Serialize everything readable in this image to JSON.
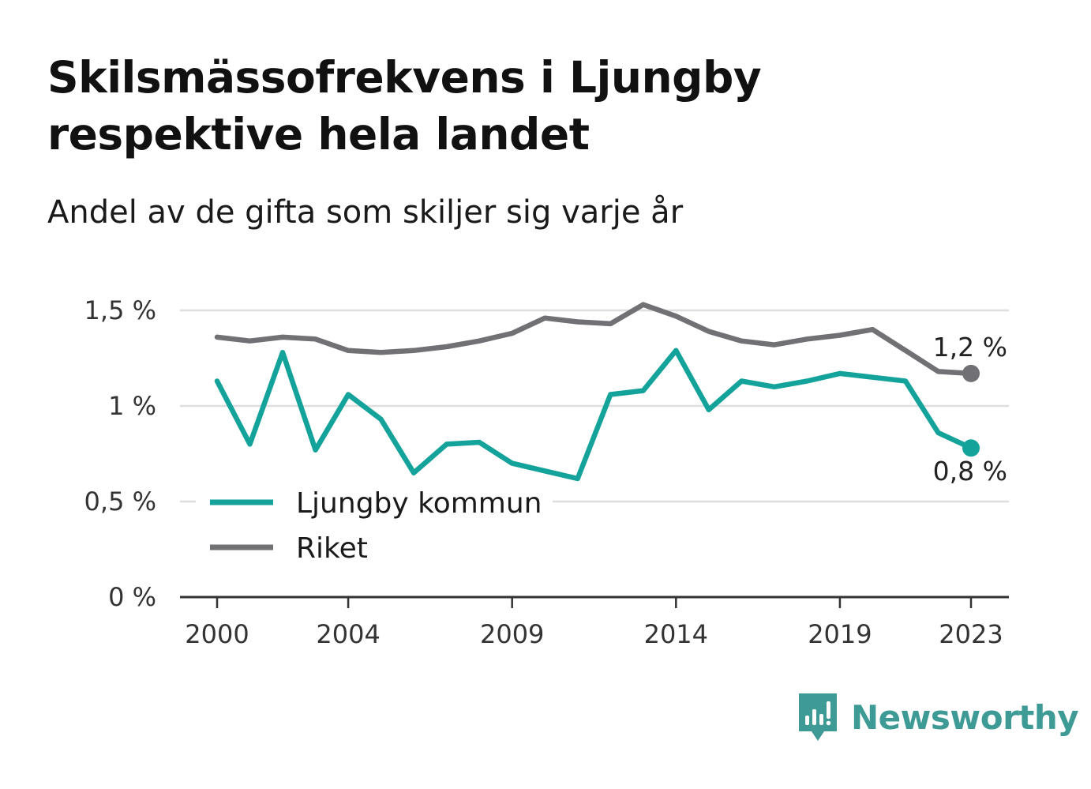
{
  "title_line1": "Skilsmässofrekvens i Ljungby",
  "title_line2": "respektive hela landet",
  "subtitle": "Andel av de gifta som skiljer sig varje år",
  "brand": {
    "name": "Newsworthy",
    "icon": "newsworthy-logo-icon",
    "color": "#3d9a95"
  },
  "chart_data": {
    "type": "line",
    "x": [
      2000,
      2001,
      2002,
      2003,
      2004,
      2005,
      2006,
      2007,
      2008,
      2009,
      2010,
      2011,
      2012,
      2013,
      2014,
      2015,
      2016,
      2017,
      2018,
      2019,
      2020,
      2021,
      2022,
      2023
    ],
    "x_ticks": [
      2000,
      2004,
      2009,
      2014,
      2019,
      2023
    ],
    "x_tick_labels": [
      "2000",
      "2004",
      "2009",
      "2014",
      "2019",
      "2023"
    ],
    "y_ticks": [
      0,
      0.5,
      1,
      1.5
    ],
    "y_tick_labels": [
      "0 %",
      "0,5 %",
      "1 %",
      "1,5 %"
    ],
    "ylim": [
      0,
      1.5
    ],
    "unit": "%",
    "grid": true,
    "legend_position": "bottom-left",
    "series": [
      {
        "name": "Ljungby kommun",
        "color": "#14a39a",
        "values": [
          1.13,
          0.8,
          1.28,
          0.77,
          1.06,
          0.93,
          0.65,
          0.8,
          0.81,
          0.7,
          0.66,
          0.62,
          1.06,
          1.08,
          1.29,
          0.98,
          1.13,
          1.1,
          1.13,
          1.17,
          1.15,
          1.13,
          0.86,
          0.78
        ],
        "end_label": "0,8 %"
      },
      {
        "name": "Riket",
        "color": "#707075",
        "values": [
          1.36,
          1.34,
          1.36,
          1.35,
          1.29,
          1.28,
          1.29,
          1.31,
          1.34,
          1.38,
          1.46,
          1.44,
          1.43,
          1.53,
          1.47,
          1.39,
          1.34,
          1.32,
          1.35,
          1.37,
          1.4,
          1.29,
          1.18,
          1.17
        ],
        "end_label": "1,2 %"
      }
    ]
  }
}
